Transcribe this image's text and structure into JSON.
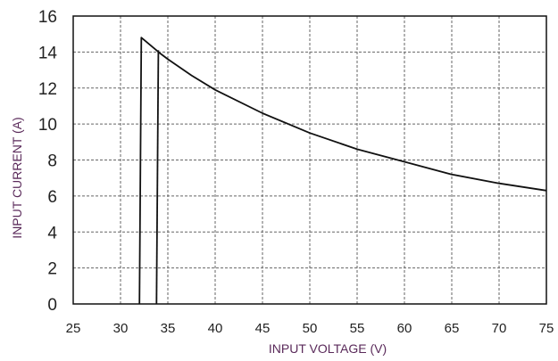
{
  "chart_data": {
    "type": "line",
    "title": "",
    "xlabel": "INPUT VOLTAGE (V)",
    "ylabel": "INPUT CURRENT (A)",
    "xlim": [
      25,
      75
    ],
    "ylim": [
      0,
      16
    ],
    "x_ticks": [
      "25",
      "30",
      "35",
      "40",
      "45",
      "50",
      "55",
      "60",
      "65",
      "70",
      "75"
    ],
    "y_ticks": [
      "0",
      "2",
      "4",
      "6",
      "8",
      "10",
      "12",
      "14",
      "16"
    ],
    "grid": true,
    "legend": "none",
    "series": [
      {
        "x": [
          32,
          32.2,
          33.8,
          34,
          35,
          37.5,
          40,
          45,
          50,
          55,
          60,
          65,
          70,
          75
        ],
        "y": [
          0,
          14.8,
          14.1,
          14.0,
          13.6,
          12.7,
          11.9,
          10.6,
          9.5,
          8.6,
          7.9,
          7.2,
          6.7,
          6.3
        ]
      },
      {
        "x": [
          33.8,
          34.0
        ],
        "y": [
          0,
          14.1
        ]
      }
    ],
    "colors": {
      "line": "#111111",
      "grid": "#666666",
      "axis_title": "#5a2a5a"
    }
  }
}
